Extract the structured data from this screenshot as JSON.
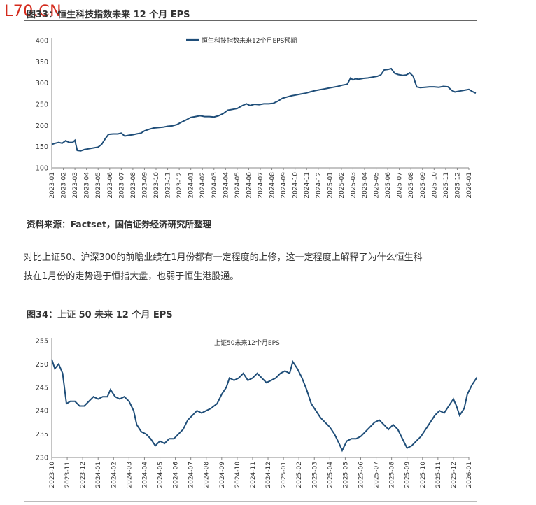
{
  "watermark": "L70.CN",
  "figure33": {
    "title": "图33：恒生科技指数未来 12 个月 EPS",
    "source": "资料来源：Factset，国信证券经济研究所整理"
  },
  "paragraph": {
    "line1": "对比上证50、沪深300的前瞻业绩在1月份都有一定程度的上修，这一定程度上解释了为什么恒生科",
    "line2": "技在1月份的走势逊于恒指大盘，也弱于恒生港股通。"
  },
  "figure34": {
    "title": "图34：上证 50 未来 12 个月 EPS"
  },
  "chart_data": [
    {
      "type": "line",
      "title": "",
      "xlabel": "",
      "ylabel": "",
      "ylim": [
        100,
        400
      ],
      "yticks": [
        100,
        150,
        200,
        250,
        300,
        350,
        400
      ],
      "xticks": [
        "2023-01",
        "2023-02",
        "2023-03",
        "2023-04",
        "2023-05",
        "2023-06",
        "2023-07",
        "2023-08",
        "2023-09",
        "2023-10",
        "2023-11",
        "2023-12",
        "2024-01",
        "2024-02",
        "2024-03",
        "2024-04",
        "2024-05",
        "2024-06",
        "2024-07",
        "2024-08",
        "2024-09",
        "2024-10",
        "2024-11",
        "2024-12",
        "2025-01",
        "2025-02",
        "2025-03",
        "2025-04",
        "2025-05",
        "2025-06",
        "2025-07",
        "2025-08",
        "2025-09",
        "2025-10",
        "2025-11",
        "2025-12",
        "2026-01"
      ],
      "legend_position": "top-center",
      "color": "#1f4e79",
      "series": [
        {
          "name": "恒生科技指数未来12个月EPS预期",
          "points": [
            [
              0,
              155
            ],
            [
              0.3,
              158
            ],
            [
              0.6,
              160
            ],
            [
              0.9,
              158
            ],
            [
              1.2,
              164
            ],
            [
              1.5,
              160
            ],
            [
              1.8,
              160
            ],
            [
              2.0,
              165
            ],
            [
              2.2,
              141
            ],
            [
              2.5,
              140
            ],
            [
              2.8,
              143
            ],
            [
              3.2,
              145
            ],
            [
              3.6,
              147
            ],
            [
              4.0,
              149
            ],
            [
              4.3,
              155
            ],
            [
              4.6,
              168
            ],
            [
              4.9,
              179
            ],
            [
              5.3,
              180
            ],
            [
              5.7,
              180
            ],
            [
              6.0,
              182
            ],
            [
              6.3,
              175
            ],
            [
              6.7,
              177
            ],
            [
              7.0,
              178
            ],
            [
              7.3,
              180
            ],
            [
              7.7,
              182
            ],
            [
              8.0,
              187
            ],
            [
              8.4,
              191
            ],
            [
              8.8,
              194
            ],
            [
              9.2,
              195
            ],
            [
              9.6,
              196
            ],
            [
              10.0,
              198
            ],
            [
              10.4,
              199
            ],
            [
              10.8,
              202
            ],
            [
              11.2,
              208
            ],
            [
              11.6,
              213
            ],
            [
              12.0,
              219
            ],
            [
              12.4,
              221
            ],
            [
              12.8,
              223
            ],
            [
              13.2,
              221
            ],
            [
              13.6,
              221
            ],
            [
              14.0,
              220
            ],
            [
              14.4,
              223
            ],
            [
              14.8,
              228
            ],
            [
              15.2,
              236
            ],
            [
              15.6,
              238
            ],
            [
              16.0,
              240
            ],
            [
              16.4,
              246
            ],
            [
              16.8,
              251
            ],
            [
              17.1,
              247
            ],
            [
              17.5,
              250
            ],
            [
              17.9,
              249
            ],
            [
              18.3,
              251
            ],
            [
              18.7,
              251
            ],
            [
              19.1,
              252
            ],
            [
              19.5,
              257
            ],
            [
              19.9,
              264
            ],
            [
              20.3,
              267
            ],
            [
              20.7,
              270
            ],
            [
              21.1,
              272
            ],
            [
              21.5,
              274
            ],
            [
              21.9,
              276
            ],
            [
              22.3,
              279
            ],
            [
              22.7,
              282
            ],
            [
              23.1,
              284
            ],
            [
              23.5,
              286
            ],
            [
              23.9,
              288
            ],
            [
              24.3,
              290
            ],
            [
              24.7,
              292
            ],
            [
              25.1,
              295
            ],
            [
              25.5,
              297
            ],
            [
              25.8,
              312
            ],
            [
              26.0,
              307
            ],
            [
              26.2,
              310
            ],
            [
              26.5,
              309
            ],
            [
              26.9,
              311
            ],
            [
              27.3,
              312
            ],
            [
              27.7,
              314
            ],
            [
              28.1,
              316
            ],
            [
              28.4,
              319
            ],
            [
              28.7,
              331
            ],
            [
              29.0,
              332
            ],
            [
              29.3,
              334
            ],
            [
              29.6,
              323
            ],
            [
              29.9,
              320
            ],
            [
              30.3,
              318
            ],
            [
              30.6,
              319
            ],
            [
              30.9,
              324
            ],
            [
              31.2,
              316
            ],
            [
              31.5,
              291
            ],
            [
              31.8,
              289
            ],
            [
              32.2,
              290
            ],
            [
              32.6,
              291
            ],
            [
              33.0,
              291
            ],
            [
              33.4,
              290
            ],
            [
              33.8,
              292
            ],
            [
              34.2,
              291
            ],
            [
              34.5,
              283
            ],
            [
              34.8,
              279
            ],
            [
              35.2,
              281
            ],
            [
              35.6,
              283
            ],
            [
              36.0,
              285
            ],
            [
              36.3,
              280
            ],
            [
              36.6,
              276
            ]
          ]
        }
      ]
    },
    {
      "type": "line",
      "title": "",
      "xlabel": "",
      "ylabel": "",
      "ylim": [
        230,
        255
      ],
      "yticks": [
        230,
        235,
        240,
        245,
        250,
        255
      ],
      "xticks": [
        "2023-10",
        "2023-11",
        "2023-12",
        "2024-01",
        "2024-02",
        "2024-03",
        "2024-04",
        "2024-05",
        "2024-06",
        "2024-07",
        "2024-08",
        "2024-09",
        "2024-10",
        "2024-11",
        "2024-12",
        "2025-01",
        "2025-02",
        "2025-03",
        "2025-04",
        "2025-05",
        "2025-06",
        "2025-07",
        "2025-08",
        "2025-09",
        "2025-10",
        "2025-11",
        "2025-12",
        "2026-01"
      ],
      "legend_position": "top-center",
      "color": "#1f4e79",
      "series": [
        {
          "name": "上证50未来12个月EPS",
          "points": [
            [
              0,
              251
            ],
            [
              0.2,
              249
            ],
            [
              0.45,
              250
            ],
            [
              0.7,
              248
            ],
            [
              0.95,
              241.5
            ],
            [
              1.2,
              242
            ],
            [
              1.5,
              242
            ],
            [
              1.8,
              241
            ],
            [
              2.1,
              241
            ],
            [
              2.4,
              242
            ],
            [
              2.7,
              243
            ],
            [
              3.0,
              242.5
            ],
            [
              3.3,
              243
            ],
            [
              3.6,
              243
            ],
            [
              3.8,
              244.5
            ],
            [
              4.1,
              243
            ],
            [
              4.4,
              242.5
            ],
            [
              4.7,
              243
            ],
            [
              5.0,
              242
            ],
            [
              5.3,
              240
            ],
            [
              5.5,
              237
            ],
            [
              5.8,
              235.5
            ],
            [
              6.1,
              235
            ],
            [
              6.4,
              234
            ],
            [
              6.7,
              232.5
            ],
            [
              7.0,
              233.5
            ],
            [
              7.3,
              233
            ],
            [
              7.6,
              234
            ],
            [
              7.9,
              234
            ],
            [
              8.2,
              235
            ],
            [
              8.5,
              236
            ],
            [
              8.8,
              238
            ],
            [
              9.1,
              239
            ],
            [
              9.4,
              240
            ],
            [
              9.7,
              239.5
            ],
            [
              10.0,
              240
            ],
            [
              10.3,
              240.5
            ],
            [
              10.5,
              241
            ],
            [
              10.7,
              241.5
            ],
            [
              11.0,
              243.5
            ],
            [
              11.3,
              245
            ],
            [
              11.5,
              247
            ],
            [
              11.8,
              246.5
            ],
            [
              12.1,
              247
            ],
            [
              12.4,
              248
            ],
            [
              12.7,
              246.5
            ],
            [
              13.0,
              247
            ],
            [
              13.3,
              248
            ],
            [
              13.6,
              247
            ],
            [
              13.9,
              246
            ],
            [
              14.2,
              246.5
            ],
            [
              14.5,
              247
            ],
            [
              14.8,
              248
            ],
            [
              15.1,
              248.5
            ],
            [
              15.4,
              248
            ],
            [
              15.6,
              250.5
            ],
            [
              15.9,
              249
            ],
            [
              16.2,
              247
            ],
            [
              16.5,
              244.5
            ],
            [
              16.8,
              241.5
            ],
            [
              17.1,
              240
            ],
            [
              17.4,
              238.5
            ],
            [
              17.7,
              237.5
            ],
            [
              18.0,
              236.5
            ],
            [
              18.3,
              235
            ],
            [
              18.6,
              233
            ],
            [
              18.8,
              231.5
            ],
            [
              19.1,
              233.5
            ],
            [
              19.4,
              234
            ],
            [
              19.7,
              234
            ],
            [
              20.0,
              234.5
            ],
            [
              20.3,
              235.5
            ],
            [
              20.6,
              236.5
            ],
            [
              20.9,
              237.5
            ],
            [
              21.2,
              238
            ],
            [
              21.5,
              237
            ],
            [
              21.8,
              236
            ],
            [
              22.1,
              237
            ],
            [
              22.4,
              236
            ],
            [
              22.7,
              234
            ],
            [
              23.0,
              232
            ],
            [
              23.3,
              232.5
            ],
            [
              23.6,
              233.5
            ],
            [
              23.9,
              234.5
            ],
            [
              24.2,
              236
            ],
            [
              24.5,
              237.5
            ],
            [
              24.8,
              239
            ],
            [
              25.1,
              240
            ],
            [
              25.4,
              239.5
            ],
            [
              25.7,
              241
            ],
            [
              26.0,
              242.5
            ],
            [
              26.2,
              241
            ],
            [
              26.4,
              239
            ],
            [
              26.7,
              240.5
            ],
            [
              26.9,
              243.5
            ],
            [
              27.2,
              245.5
            ],
            [
              27.4,
              246.5
            ],
            [
              27.6,
              247.5
            ],
            [
              27.85,
              247
            ]
          ]
        }
      ]
    }
  ]
}
